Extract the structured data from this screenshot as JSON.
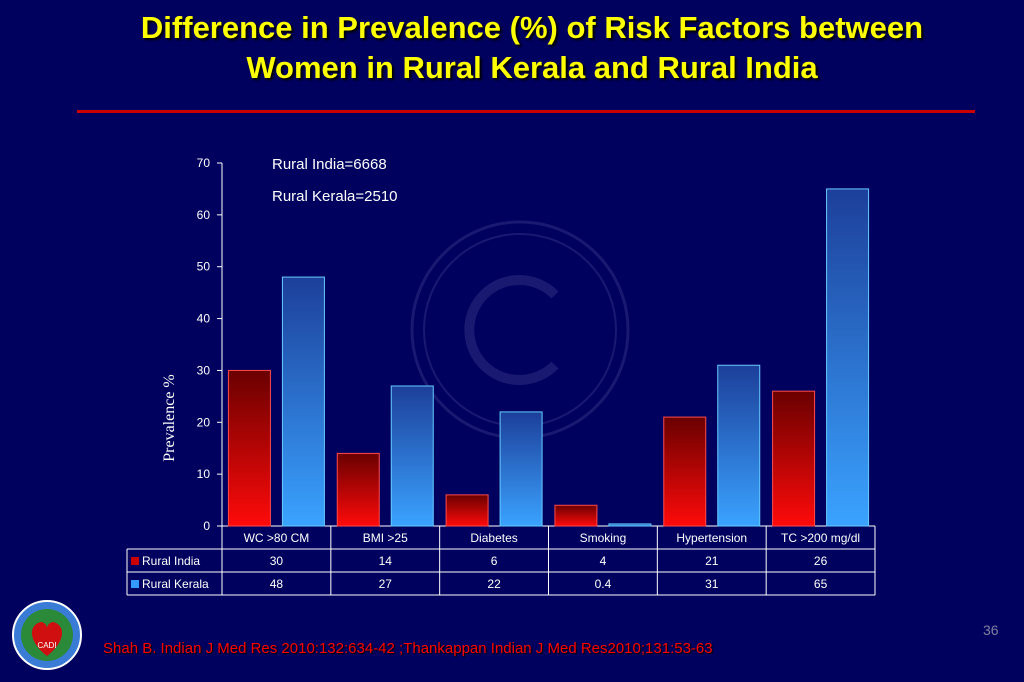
{
  "slide": {
    "title_line1": "Difference in Prevalence (%) of Risk Factors between",
    "title_line2": "Women in Rural Kerala and Rural India",
    "citation": "Shah B. Indian J Med Res 2010:132:634-42 ;Thankappan Indian J Med Res2010;131:53-63",
    "slide_number": "36",
    "logo_text": "CADI"
  },
  "colors": {
    "background": "#00005e",
    "title": "#ffff00",
    "rule": "#cc0000",
    "series_india": "#cc0000",
    "series_kerala": "#3399ff"
  },
  "chart_data": {
    "type": "bar",
    "title": "",
    "ylabel": "Prevalence %",
    "xlabel": "",
    "ylim": [
      0,
      70
    ],
    "yticks": [
      0,
      10,
      20,
      30,
      40,
      50,
      60,
      70
    ],
    "grid": false,
    "categories": [
      "WC >80 CM",
      "BMI >25",
      "Diabetes",
      "Smoking",
      "Hypertension",
      "TC >200 mg/dl"
    ],
    "series": [
      {
        "name": "Rural India",
        "values": [
          30,
          14,
          6,
          4,
          21,
          26
        ],
        "display": [
          "30",
          "14",
          "6",
          "4",
          "21",
          "26"
        ]
      },
      {
        "name": "Rural Kerala",
        "values": [
          48,
          27,
          22,
          0.4,
          31,
          65
        ],
        "display": [
          "48",
          "27",
          "22",
          "0.4",
          "31",
          "65"
        ]
      }
    ],
    "annotations": [
      "Rural India=6668",
      "Rural Kerala=2510"
    ],
    "legend": "data-table"
  }
}
